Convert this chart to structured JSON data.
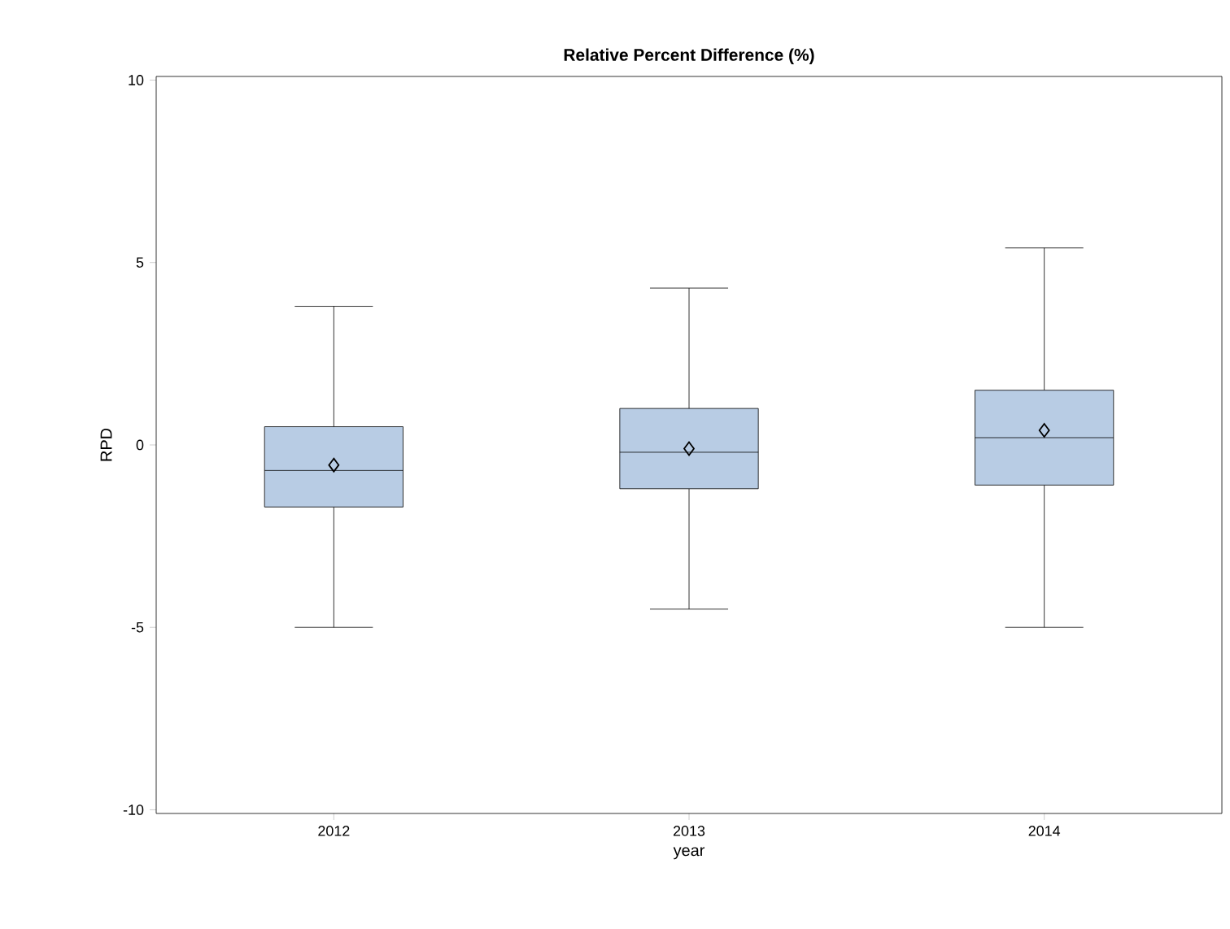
{
  "chart_data": {
    "type": "box",
    "title": "Relative Percent Difference (%)",
    "xlabel": "year",
    "ylabel": "RPD",
    "categories": [
      "2012",
      "2013",
      "2014"
    ],
    "boxes": [
      {
        "low": -5.0,
        "q1": -1.7,
        "median": -0.7,
        "q3": 0.5,
        "high": 3.8,
        "mean": -0.55
      },
      {
        "low": -4.5,
        "q1": -1.2,
        "median": -0.2,
        "q3": 1.0,
        "high": 4.3,
        "mean": -0.1
      },
      {
        "low": -5.0,
        "q1": -1.1,
        "median": 0.2,
        "q3": 1.5,
        "high": 5.4,
        "mean": 0.4
      }
    ],
    "color": "#b8cce4",
    "ylim": [
      -10.1,
      10.1
    ],
    "yticks": [
      -10,
      -5,
      0,
      5,
      10
    ]
  }
}
